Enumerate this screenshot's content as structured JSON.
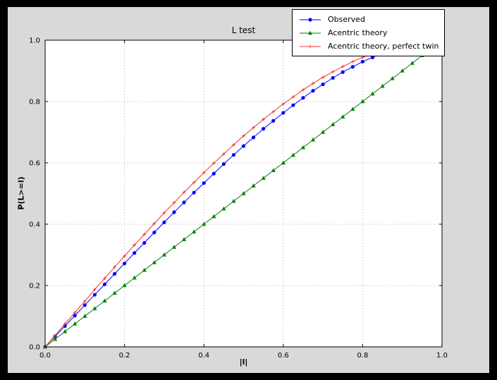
{
  "window": {
    "background": "#000000",
    "figure_bg": "#d9d9d9"
  },
  "chart_data": {
    "type": "line",
    "title": "L test",
    "xlabel": "|l|",
    "ylabel": "P(L>=l)",
    "xlim": [
      0,
      1
    ],
    "ylim": [
      0,
      1
    ],
    "xticks": [
      0,
      0.2,
      0.4,
      0.6,
      0.8,
      1.0
    ],
    "yticks": [
      0,
      0.2,
      0.4,
      0.6,
      0.8,
      1.0
    ],
    "xtick_labels": [
      "0.0",
      "0.2",
      "0.4",
      "0.6",
      "0.8",
      "1.0"
    ],
    "ytick_labels": [
      "0.0",
      "0.2",
      "0.4",
      "0.6",
      "0.8",
      "1.0"
    ],
    "grid": {
      "on": true,
      "style": "dotted",
      "color": "#b3b3b3"
    },
    "axes_bg": "#ffffff",
    "legend_position": "upper right",
    "series": [
      {
        "name": "Observed",
        "color": "#0000ff",
        "marker": "circle",
        "x": [
          0,
          0.025,
          0.05,
          0.075,
          0.1,
          0.125,
          0.15,
          0.175,
          0.2,
          0.225,
          0.25,
          0.275,
          0.3,
          0.325,
          0.35,
          0.375,
          0.4,
          0.425,
          0.45,
          0.475,
          0.5,
          0.525,
          0.55,
          0.575,
          0.6,
          0.625,
          0.65,
          0.675,
          0.7,
          0.725,
          0.75,
          0.775,
          0.8,
          0.825,
          0.85
        ],
        "y": [
          0,
          0.034,
          0.068,
          0.102,
          0.136,
          0.17,
          0.204,
          0.238,
          0.272,
          0.306,
          0.339,
          0.373,
          0.406,
          0.439,
          0.471,
          0.503,
          0.534,
          0.565,
          0.596,
          0.626,
          0.655,
          0.683,
          0.711,
          0.737,
          0.763,
          0.788,
          0.812,
          0.835,
          0.856,
          0.877,
          0.896,
          0.913,
          0.93,
          0.944,
          0.958
        ]
      },
      {
        "name": "Acentric theory",
        "color": "#007f00",
        "marker": "triangle",
        "x": [
          0,
          0.025,
          0.05,
          0.075,
          0.1,
          0.125,
          0.15,
          0.175,
          0.2,
          0.225,
          0.25,
          0.275,
          0.3,
          0.325,
          0.35,
          0.375,
          0.4,
          0.425,
          0.45,
          0.475,
          0.5,
          0.525,
          0.55,
          0.575,
          0.6,
          0.625,
          0.65,
          0.675,
          0.7,
          0.725,
          0.75,
          0.775,
          0.8,
          0.825,
          0.85,
          0.875,
          0.9,
          0.925,
          0.95,
          0.975
        ],
        "y": [
          0,
          0.025,
          0.05,
          0.075,
          0.1,
          0.125,
          0.15,
          0.175,
          0.2,
          0.225,
          0.25,
          0.275,
          0.3,
          0.325,
          0.35,
          0.375,
          0.4,
          0.425,
          0.45,
          0.475,
          0.5,
          0.525,
          0.55,
          0.575,
          0.6,
          0.625,
          0.65,
          0.675,
          0.7,
          0.725,
          0.75,
          0.775,
          0.8,
          0.825,
          0.85,
          0.875,
          0.9,
          0.925,
          0.95,
          0.975
        ]
      },
      {
        "name": "Acentric theory, perfect twin",
        "color": "#f03528",
        "marker": "plus",
        "x": [
          0,
          0.025,
          0.05,
          0.075,
          0.1,
          0.125,
          0.15,
          0.175,
          0.2,
          0.225,
          0.25,
          0.275,
          0.3,
          0.325,
          0.35,
          0.375,
          0.4,
          0.425,
          0.45,
          0.475,
          0.5,
          0.525,
          0.55,
          0.575,
          0.6,
          0.625,
          0.65,
          0.675,
          0.7,
          0.725,
          0.75,
          0.775,
          0.8,
          0.825,
          0.85
        ],
        "y": [
          0,
          0.037,
          0.075,
          0.112,
          0.149,
          0.187,
          0.223,
          0.26,
          0.296,
          0.332,
          0.367,
          0.402,
          0.437,
          0.47,
          0.504,
          0.536,
          0.568,
          0.599,
          0.629,
          0.659,
          0.688,
          0.715,
          0.742,
          0.767,
          0.792,
          0.815,
          0.838,
          0.859,
          0.879,
          0.897,
          0.914,
          0.93,
          0.944,
          0.957,
          0.968
        ]
      }
    ]
  }
}
